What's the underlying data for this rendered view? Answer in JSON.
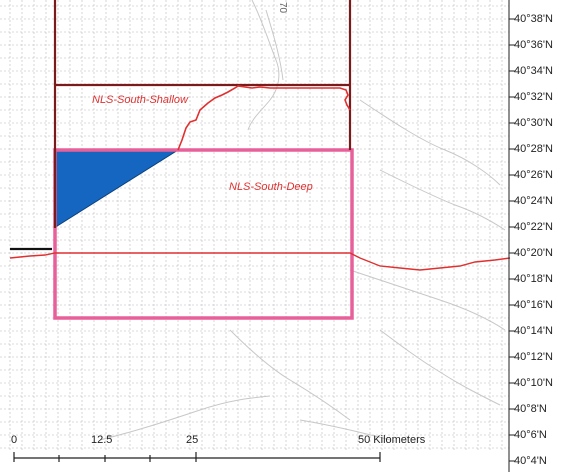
{
  "map": {
    "zones": [
      {
        "id": "shallow",
        "label": "NLS-South-Shallow"
      },
      {
        "id": "deep",
        "label": "NLS-South-Deep"
      }
    ],
    "latitude_labels": [
      "40°38'N",
      "40°36'N",
      "40°34'N",
      "40°32'N",
      "40°30'N",
      "40°28'N",
      "40°26'N",
      "40°24'N",
      "40°22'N",
      "40°20'N",
      "40°18'N",
      "40°16'N",
      "40°14'N",
      "40°12'N",
      "40°10'N",
      "40°8'N",
      "40°6'N",
      "40°4'N"
    ],
    "scale_bar": {
      "ticks": [
        "0",
        "12.5",
        "25",
        "50 Kilometers"
      ]
    },
    "contour_label": "70",
    "colors": {
      "shallow_outline": "#7a1a1a",
      "deep_outline": "#e8609a",
      "blue_fill": "#1566c0",
      "red_line": "#e03030",
      "label_red": "#e03030",
      "grid": "#b8b8b8"
    }
  }
}
